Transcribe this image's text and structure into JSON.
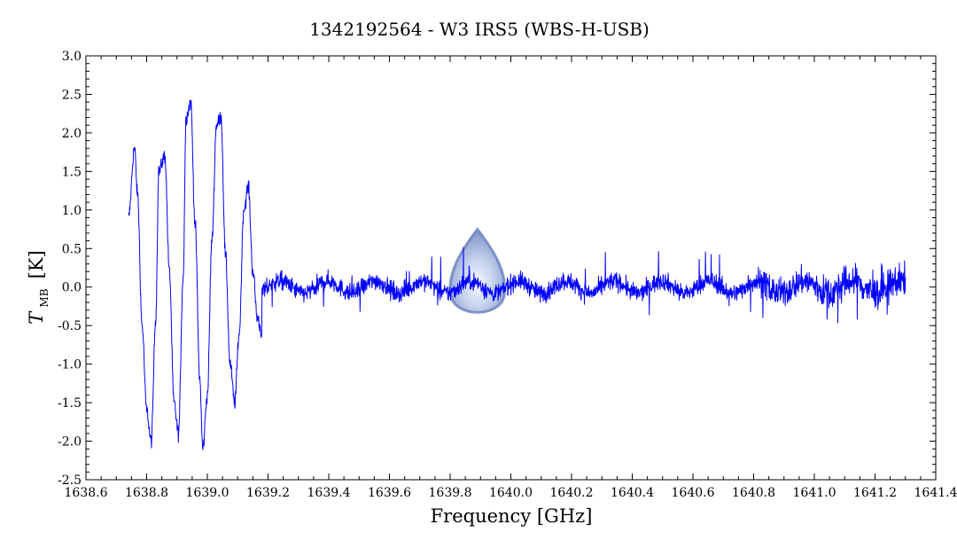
{
  "chart_data": {
    "type": "line",
    "title": "1342192564 - W3 IRS5 (WBS-H-USB)",
    "xlabel": "Frequency [GHz]",
    "ylabel": "T_MB [K]",
    "ylabel_symbol": "T",
    "ylabel_subscript": "MB",
    "ylabel_unit": "[K]",
    "xlim": [
      1638.6,
      1641.4
    ],
    "ylim": [
      -2.5,
      3.0
    ],
    "x_ticks": [
      "1638.6",
      "1638.8",
      "1639.0",
      "1639.2",
      "1639.4",
      "1639.6",
      "1639.8",
      "1640.0",
      "1640.2",
      "1640.4",
      "1640.6",
      "1640.8",
      "1641.0",
      "1641.2",
      "1641.4"
    ],
    "y_ticks": [
      "-2.5",
      "-2.0",
      "-1.5",
      "-1.0",
      "-0.5",
      "0.0",
      "0.5",
      "1.0",
      "1.5",
      "2.0",
      "2.5",
      "3.0"
    ],
    "grid": false,
    "series": [
      {
        "color": "#0000ff",
        "x_range": [
          1638.74,
          1641.3
        ],
        "baseline_noise": "approx ±0.3 K about 0.0, rising to approx ±0.6 K above 1640.8 GHz",
        "x": [
          1638.74,
          1638.76,
          1638.77,
          1638.785,
          1638.8,
          1638.815,
          1638.83,
          1638.84,
          1638.86,
          1638.875,
          1638.89,
          1638.905,
          1638.92,
          1638.93,
          1638.945,
          1638.96,
          1638.975,
          1638.985,
          1639.0,
          1639.015,
          1639.03,
          1639.045,
          1639.06,
          1639.075,
          1639.09,
          1639.105,
          1639.12,
          1639.135,
          1639.15,
          1639.165,
          1639.18
        ],
        "y": [
          0.9,
          1.8,
          1.2,
          -0.5,
          -1.6,
          -2.0,
          -0.4,
          1.5,
          1.7,
          0.2,
          -1.5,
          -1.9,
          0.1,
          2.2,
          2.4,
          0.8,
          -1.2,
          -2.1,
          -1.4,
          0.6,
          2.1,
          2.2,
          0.4,
          -1.0,
          -1.5,
          -0.6,
          1.0,
          1.3,
          0.2,
          -0.4,
          -0.6
        ]
      }
    ],
    "annotations": [
      {
        "type": "droplet-marker",
        "x": 1639.89,
        "y_top": 0.75,
        "y_bottom": -0.4,
        "color": "#8fa6d6"
      }
    ]
  }
}
